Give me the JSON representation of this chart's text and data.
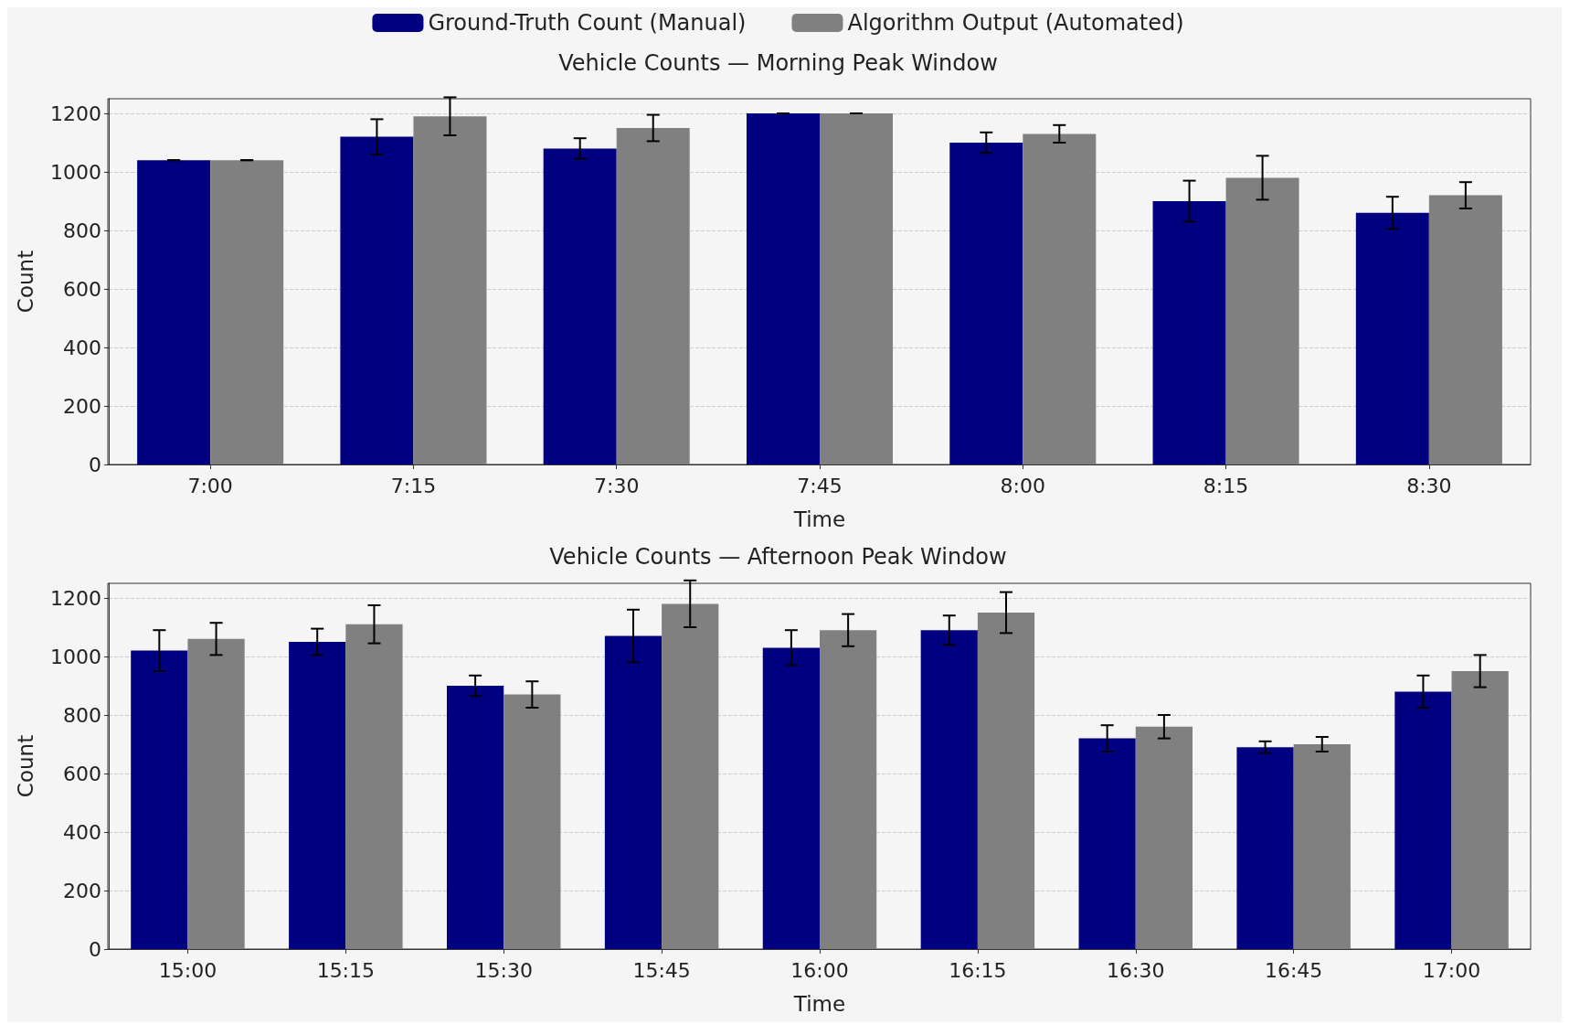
{
  "chart_data": [
    {
      "type": "bar",
      "title": "Vehicle Counts — Morning Peak Window",
      "xlabel": "Time",
      "ylabel": "Count",
      "categories": [
        "7:00",
        "7:15",
        "7:30",
        "7:45",
        "8:00",
        "8:15",
        "8:30"
      ],
      "series": [
        {
          "name": "Ground-Truth Count (Manual)",
          "color": "#000080",
          "values": [
            1040,
            1120,
            1080,
            1200,
            1100,
            900,
            860
          ],
          "errors": [
            0,
            60,
            35,
            0,
            35,
            70,
            55
          ]
        },
        {
          "name": "Algorithm Output (Automated)",
          "color": "#808080",
          "values": [
            1040,
            1190,
            1150,
            1200,
            1130,
            980,
            920
          ],
          "errors": [
            0,
            65,
            45,
            0,
            30,
            75,
            45
          ]
        }
      ],
      "ylim": [
        0,
        1250
      ],
      "yticks": [
        0,
        200,
        400,
        600,
        800,
        1000,
        1200
      ],
      "grid": "y",
      "legend": "top"
    },
    {
      "type": "bar",
      "title": "Vehicle Counts — Afternoon Peak Window",
      "xlabel": "Time",
      "ylabel": "Count",
      "categories": [
        "15:00",
        "15:15",
        "15:30",
        "15:45",
        "16:00",
        "16:15",
        "16:30",
        "16:45",
        "17:00"
      ],
      "series": [
        {
          "color": "#000080",
          "values": [
            1020,
            1050,
            900,
            1070,
            1030,
            1090,
            720,
            690,
            880
          ],
          "errors": [
            70,
            45,
            35,
            90,
            60,
            50,
            45,
            20,
            55
          ]
        },
        {
          "color": "#808080",
          "values": [
            1060,
            1110,
            870,
            1180,
            1090,
            1150,
            760,
            700,
            950
          ],
          "errors": [
            55,
            65,
            45,
            80,
            55,
            70,
            40,
            25,
            55
          ]
        }
      ],
      "ylim": [
        0,
        1250
      ],
      "yticks": [
        0,
        200,
        400,
        600,
        800,
        1000,
        1200
      ],
      "grid": "y",
      "legend": false
    }
  ]
}
